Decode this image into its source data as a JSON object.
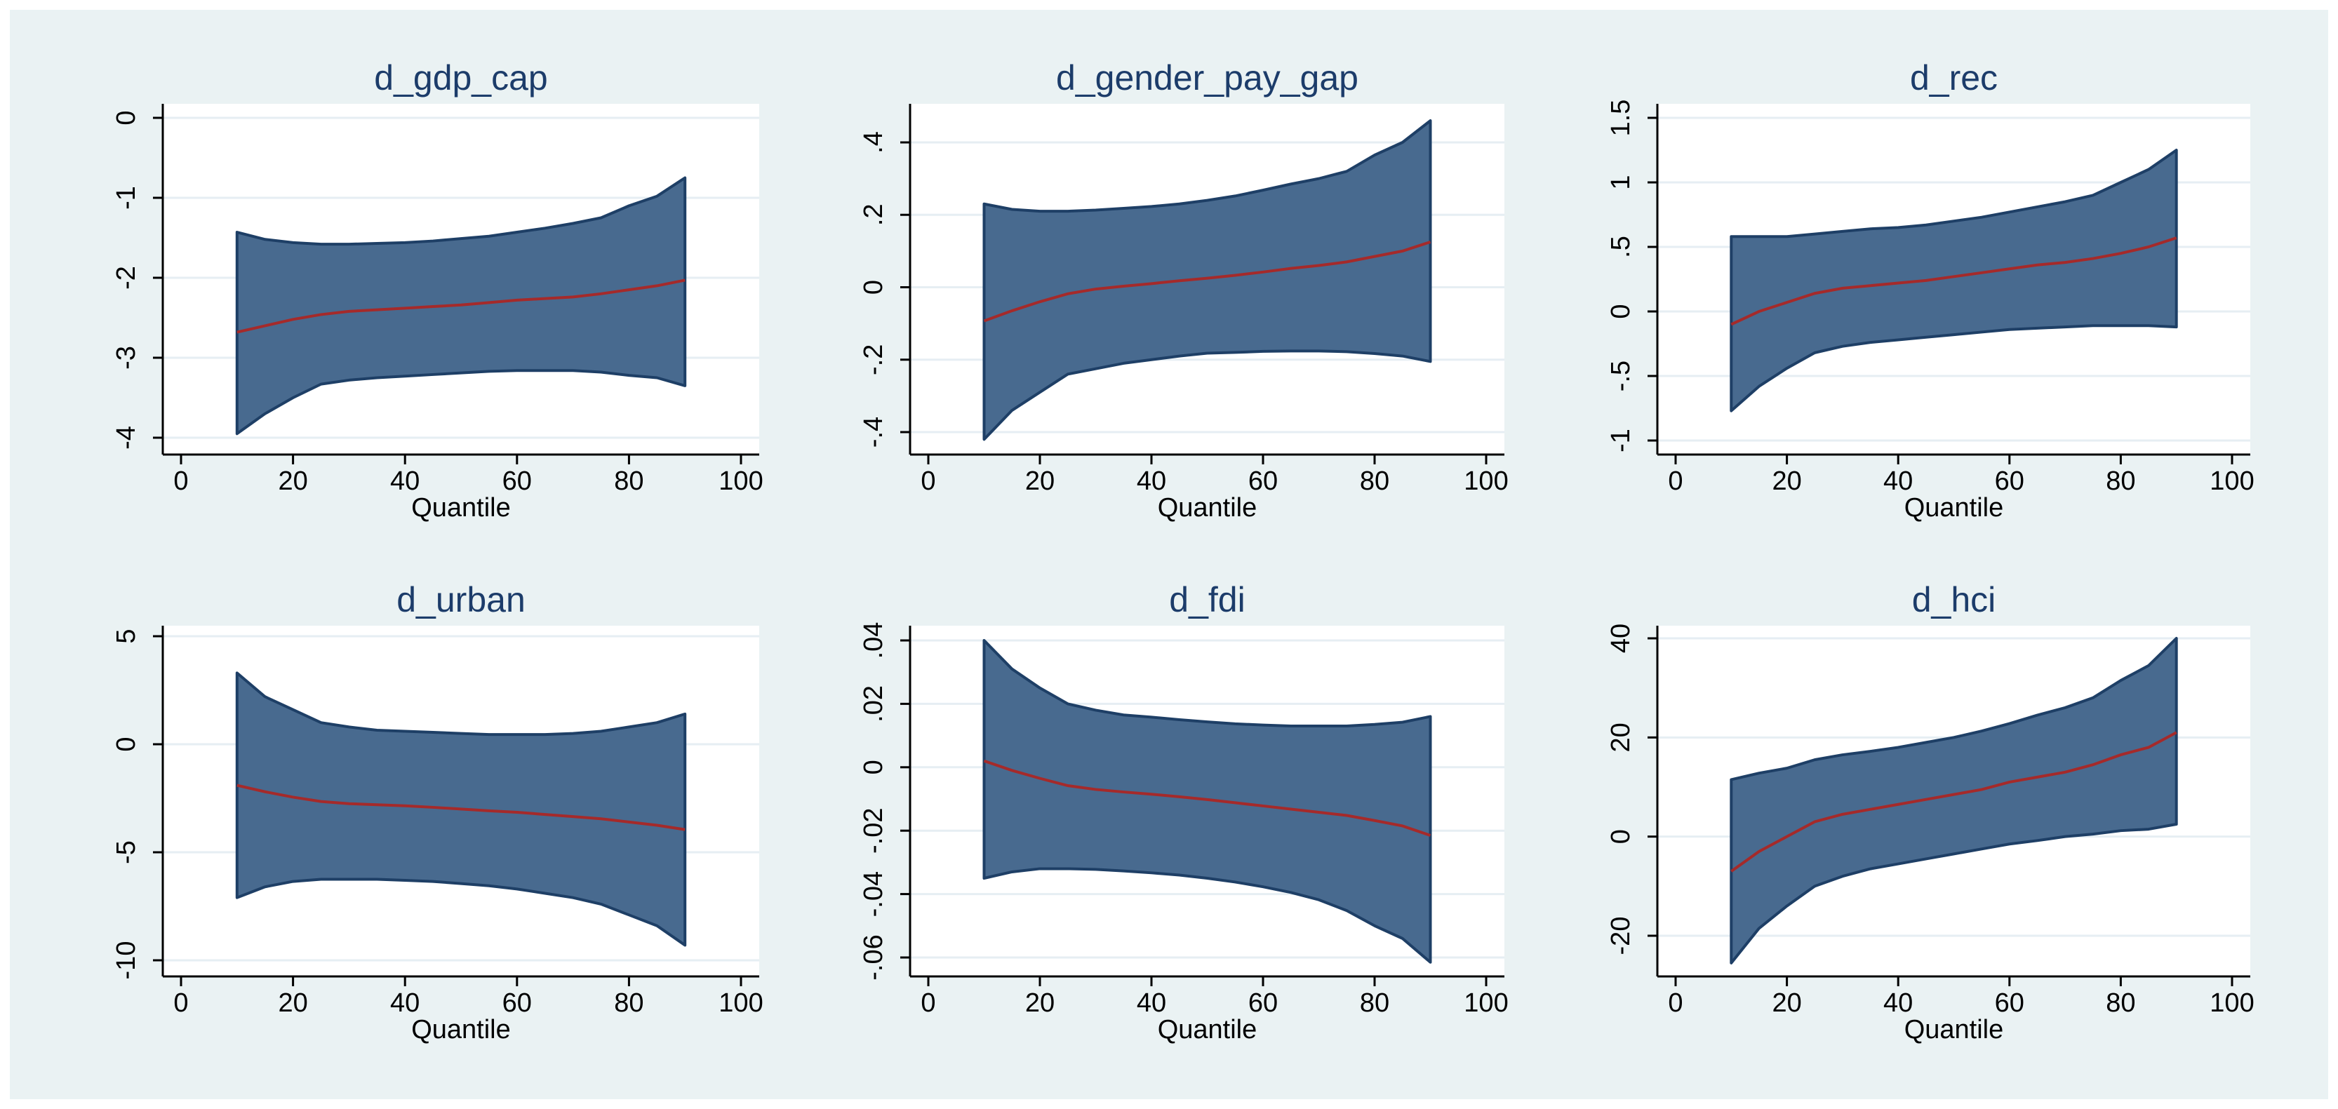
{
  "background_color": "#eaf2f3",
  "plot_background_color": "#ffffff",
  "band_color": "#486a8f",
  "band_edge_color": "#1e3f66",
  "line_color": "#a52a2a",
  "title_color": "#1c3c6a",
  "chart_data": [
    {
      "type": "area",
      "title": "d_gdp_cap",
      "xlabel": "Quantile",
      "ylabel": "",
      "xlim": [
        0,
        100
      ],
      "ylim": [
        -4,
        0
      ],
      "xticks": [
        0,
        20,
        40,
        60,
        80,
        100
      ],
      "yticks": [
        -4,
        -3,
        -2,
        -1,
        0
      ],
      "ytick_labels": [
        "-4",
        "-3",
        "-2",
        "-1",
        "0"
      ],
      "grid": true,
      "x": [
        10,
        15,
        20,
        25,
        30,
        35,
        40,
        45,
        50,
        55,
        60,
        65,
        70,
        75,
        80,
        85,
        90
      ],
      "series": [
        {
          "role": "estimate",
          "values": [
            -2.68,
            -2.6,
            -2.52,
            -2.46,
            -2.42,
            -2.4,
            -2.38,
            -2.36,
            -2.34,
            -2.31,
            -2.28,
            -2.26,
            -2.24,
            -2.2,
            -2.15,
            -2.1,
            -2.03
          ]
        },
        {
          "role": "upper",
          "values": [
            -1.43,
            -1.52,
            -1.56,
            -1.58,
            -1.58,
            -1.57,
            -1.56,
            -1.54,
            -1.51,
            -1.48,
            -1.43,
            -1.38,
            -1.32,
            -1.25,
            -1.1,
            -0.98,
            -0.75
          ]
        },
        {
          "role": "lower",
          "values": [
            -3.95,
            -3.7,
            -3.5,
            -3.33,
            -3.28,
            -3.25,
            -3.23,
            -3.21,
            -3.19,
            -3.17,
            -3.16,
            -3.16,
            -3.16,
            -3.18,
            -3.22,
            -3.25,
            -3.35
          ]
        }
      ]
    },
    {
      "type": "area",
      "title": "d_gender_pay_gap",
      "xlabel": "Quantile",
      "ylabel": "",
      "xlim": [
        0,
        100
      ],
      "ylim": [
        -0.4,
        0.4
      ],
      "xticks": [
        0,
        20,
        40,
        60,
        80,
        100
      ],
      "yticks": [
        -0.4,
        -0.2,
        0,
        0.2,
        0.4
      ],
      "ytick_labels": [
        "-.4",
        "-.2",
        "0",
        ".2",
        ".4"
      ],
      "grid": true,
      "x": [
        10,
        15,
        20,
        25,
        30,
        35,
        40,
        45,
        50,
        55,
        60,
        65,
        70,
        75,
        80,
        85,
        90
      ],
      "series": [
        {
          "role": "estimate",
          "values": [
            -0.093,
            -0.065,
            -0.04,
            -0.018,
            -0.005,
            0.003,
            0.01,
            0.018,
            0.025,
            0.033,
            0.042,
            0.052,
            0.06,
            0.07,
            0.085,
            0.1,
            0.125
          ]
        },
        {
          "role": "upper",
          "values": [
            0.23,
            0.215,
            0.21,
            0.21,
            0.213,
            0.218,
            0.223,
            0.23,
            0.24,
            0.252,
            0.268,
            0.285,
            0.3,
            0.32,
            0.365,
            0.4,
            0.46
          ]
        },
        {
          "role": "lower",
          "values": [
            -0.42,
            -0.34,
            -0.29,
            -0.24,
            -0.225,
            -0.21,
            -0.2,
            -0.19,
            -0.182,
            -0.18,
            -0.177,
            -0.176,
            -0.176,
            -0.178,
            -0.183,
            -0.19,
            -0.205
          ]
        }
      ]
    },
    {
      "type": "area",
      "title": "d_rec",
      "xlabel": "Quantile",
      "ylabel": "",
      "xlim": [
        0,
        100
      ],
      "ylim": [
        -1,
        1.5
      ],
      "xticks": [
        0,
        20,
        40,
        60,
        80,
        100
      ],
      "yticks": [
        -1,
        -0.5,
        0,
        0.5,
        1,
        1.5
      ],
      "ytick_labels": [
        "-1",
        "-.5",
        "0",
        ".5",
        "1",
        "1.5"
      ],
      "grid": true,
      "x": [
        10,
        15,
        20,
        25,
        30,
        35,
        40,
        45,
        50,
        55,
        60,
        65,
        70,
        75,
        80,
        85,
        90
      ],
      "series": [
        {
          "role": "estimate",
          "values": [
            -0.1,
            0.0,
            0.07,
            0.14,
            0.18,
            0.2,
            0.22,
            0.24,
            0.27,
            0.3,
            0.33,
            0.36,
            0.38,
            0.41,
            0.45,
            0.5,
            0.57
          ]
        },
        {
          "role": "upper",
          "values": [
            0.58,
            0.58,
            0.58,
            0.6,
            0.62,
            0.64,
            0.65,
            0.67,
            0.7,
            0.73,
            0.77,
            0.81,
            0.85,
            0.9,
            1.0,
            1.1,
            1.25
          ]
        },
        {
          "role": "lower",
          "values": [
            -0.77,
            -0.58,
            -0.44,
            -0.32,
            -0.27,
            -0.24,
            -0.22,
            -0.2,
            -0.18,
            -0.16,
            -0.14,
            -0.13,
            -0.12,
            -0.11,
            -0.11,
            -0.11,
            -0.12
          ]
        }
      ]
    },
    {
      "type": "area",
      "title": "d_urban",
      "xlabel": "Quantile",
      "ylabel": "",
      "xlim": [
        0,
        100
      ],
      "ylim": [
        -10,
        5
      ],
      "xticks": [
        0,
        20,
        40,
        60,
        80,
        100
      ],
      "yticks": [
        -10,
        -5,
        0,
        5
      ],
      "ytick_labels": [
        "-10",
        "-5",
        "0",
        "5"
      ],
      "grid": true,
      "x": [
        10,
        15,
        20,
        25,
        30,
        35,
        40,
        45,
        50,
        55,
        60,
        65,
        70,
        75,
        80,
        85,
        90
      ],
      "series": [
        {
          "role": "estimate",
          "values": [
            -1.9,
            -2.2,
            -2.45,
            -2.65,
            -2.75,
            -2.8,
            -2.85,
            -2.92,
            -3.0,
            -3.08,
            -3.15,
            -3.25,
            -3.35,
            -3.45,
            -3.6,
            -3.75,
            -3.95
          ]
        },
        {
          "role": "upper",
          "values": [
            3.3,
            2.2,
            1.6,
            1.0,
            0.8,
            0.65,
            0.6,
            0.55,
            0.5,
            0.45,
            0.45,
            0.45,
            0.5,
            0.6,
            0.8,
            1.0,
            1.4
          ]
        },
        {
          "role": "lower",
          "values": [
            -7.1,
            -6.6,
            -6.35,
            -6.25,
            -6.25,
            -6.25,
            -6.3,
            -6.35,
            -6.45,
            -6.55,
            -6.7,
            -6.9,
            -7.1,
            -7.4,
            -7.9,
            -8.4,
            -9.3
          ]
        }
      ]
    },
    {
      "type": "area",
      "title": "d_fdi",
      "xlabel": "Quantile",
      "ylabel": "",
      "xlim": [
        0,
        100
      ],
      "ylim": [
        -0.06,
        0.04
      ],
      "xticks": [
        0,
        20,
        40,
        60,
        80,
        100
      ],
      "yticks": [
        -0.06,
        -0.04,
        -0.02,
        0,
        0.02,
        0.04
      ],
      "ytick_labels": [
        "-.06",
        "-.04",
        "-.02",
        "0",
        ".02",
        ".04"
      ],
      "grid": true,
      "x": [
        10,
        15,
        20,
        25,
        30,
        35,
        40,
        45,
        50,
        55,
        60,
        65,
        70,
        75,
        80,
        85,
        90
      ],
      "series": [
        {
          "role": "estimate",
          "values": [
            0.002,
            -0.001,
            -0.0035,
            -0.0058,
            -0.007,
            -0.0078,
            -0.0085,
            -0.0093,
            -0.0102,
            -0.0112,
            -0.0122,
            -0.0132,
            -0.0142,
            -0.0152,
            -0.0168,
            -0.0185,
            -0.0215
          ]
        },
        {
          "role": "upper",
          "values": [
            0.04,
            0.031,
            0.025,
            0.02,
            0.018,
            0.0165,
            0.0158,
            0.015,
            0.0143,
            0.0137,
            0.0133,
            0.013,
            0.013,
            0.013,
            0.0135,
            0.0142,
            0.016
          ]
        },
        {
          "role": "lower",
          "values": [
            -0.035,
            -0.033,
            -0.032,
            -0.032,
            -0.0322,
            -0.0327,
            -0.0333,
            -0.034,
            -0.035,
            -0.0362,
            -0.0377,
            -0.0395,
            -0.0418,
            -0.0452,
            -0.05,
            -0.054,
            -0.0615
          ]
        }
      ]
    },
    {
      "type": "area",
      "title": "d_hci",
      "xlabel": "Quantile",
      "ylabel": "",
      "xlim": [
        0,
        100
      ],
      "ylim": [
        -20,
        40
      ],
      "xticks": [
        0,
        20,
        40,
        60,
        80,
        100
      ],
      "yticks": [
        -20,
        0,
        20,
        40
      ],
      "ytick_labels": [
        "-20",
        "0",
        "20",
        "40"
      ],
      "grid": true,
      "x": [
        10,
        15,
        20,
        25,
        30,
        35,
        40,
        45,
        50,
        55,
        60,
        65,
        70,
        75,
        80,
        85,
        90
      ],
      "series": [
        {
          "role": "estimate",
          "values": [
            -7.0,
            -3.0,
            0.0,
            3.0,
            4.5,
            5.5,
            6.5,
            7.5,
            8.5,
            9.5,
            11.0,
            12.0,
            13.0,
            14.5,
            16.5,
            18.0,
            21.0
          ]
        },
        {
          "role": "upper",
          "values": [
            11.5,
            12.8,
            13.8,
            15.5,
            16.5,
            17.2,
            18.0,
            19.0,
            20.0,
            21.3,
            22.8,
            24.5,
            26.0,
            28.0,
            31.5,
            34.5,
            40.0
          ]
        },
        {
          "role": "lower",
          "values": [
            -25.5,
            -18.5,
            -14.0,
            -10.0,
            -8.0,
            -6.5,
            -5.5,
            -4.5,
            -3.5,
            -2.5,
            -1.5,
            -0.8,
            0.0,
            0.5,
            1.2,
            1.5,
            2.5
          ]
        }
      ]
    }
  ]
}
